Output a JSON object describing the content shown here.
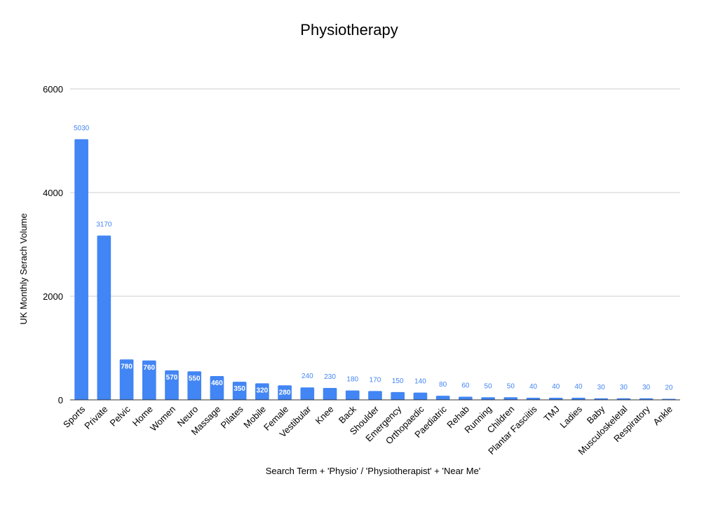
{
  "chart_data": {
    "type": "bar",
    "title": "Physiotherapy",
    "xlabel": "Search Term + 'Physio' / 'Physiotherapist' + 'Near Me'",
    "ylabel": "UK Monthly Serach Volume",
    "ylim": [
      0,
      6000
    ],
    "yticks": [
      0,
      2000,
      4000,
      6000
    ],
    "grid": true,
    "bar_color": "#4285f4",
    "categories": [
      "Sports",
      "Private",
      "Pelvic",
      "Home",
      "Women",
      "Neuro",
      "Massage",
      "Pilates",
      "Mobile",
      "Female",
      "Vestibular",
      "Knee",
      "Back",
      "Shoulder",
      "Emergency",
      "Orthopaedic",
      "Paediatric",
      "Rehab",
      "Running",
      "Children",
      "Plantar Fasciitis",
      "TMJ",
      "Ladies",
      "Baby",
      "Musculoskeletal",
      "Respiratory",
      "Ankle"
    ],
    "values": [
      5030,
      3170,
      780,
      760,
      570,
      550,
      460,
      350,
      320,
      280,
      240,
      230,
      180,
      170,
      150,
      140,
      80,
      60,
      50,
      50,
      40,
      40,
      40,
      30,
      30,
      30,
      20
    ]
  }
}
